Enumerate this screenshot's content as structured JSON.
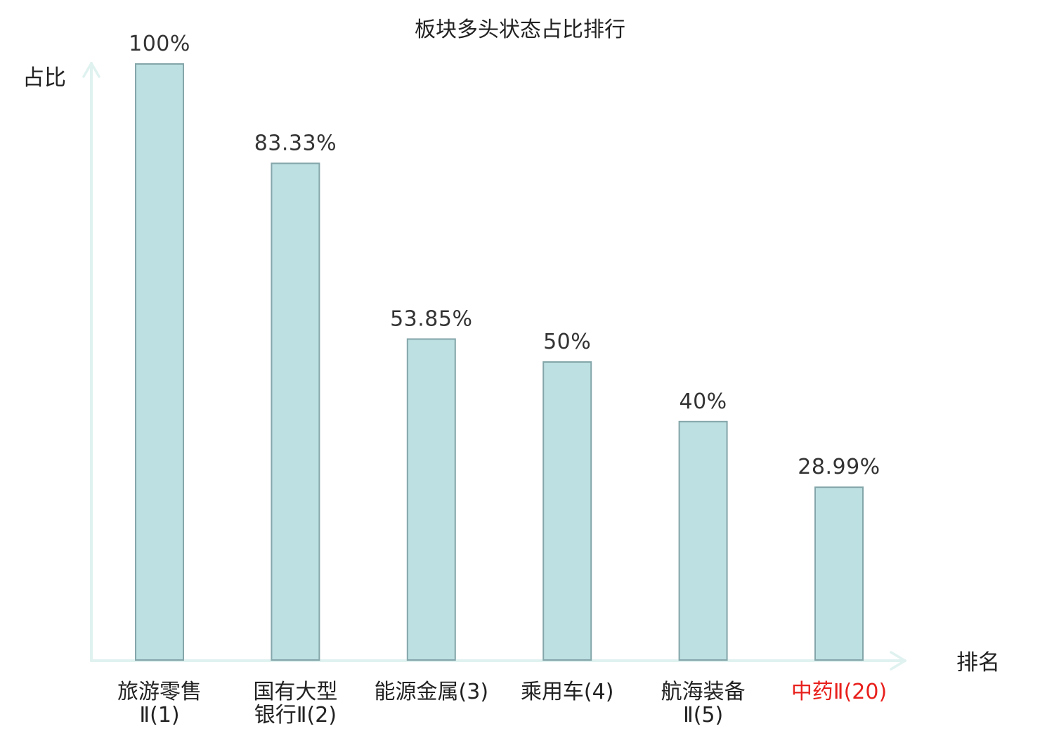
{
  "chart_data": {
    "type": "bar",
    "title": "板块多头状态占比排行",
    "ylabel": "占比",
    "xlabel": "排名",
    "ylim": [
      0,
      100
    ],
    "grid": false,
    "categories": [
      [
        "旅游零售",
        "Ⅱ(1)"
      ],
      [
        "国有大型",
        "银行Ⅱ(2)"
      ],
      [
        "能源金属(3)"
      ],
      [
        "乘用车(4)"
      ],
      [
        "航海装备",
        "Ⅱ(5)"
      ],
      [
        "中药Ⅱ(20)"
      ]
    ],
    "values": [
      100,
      83.33,
      53.85,
      50,
      40,
      28.99
    ],
    "value_labels": [
      "100%",
      "83.33%",
      "53.85%",
      "50%",
      "40%",
      "28.99%"
    ],
    "highlight_index": 5,
    "colors": {
      "bar_fill": "#bde0e2",
      "bar_stroke": "#84a6aa",
      "axis": "#dff2ef",
      "highlight_text": "#e8201c",
      "text": "#222222"
    }
  }
}
